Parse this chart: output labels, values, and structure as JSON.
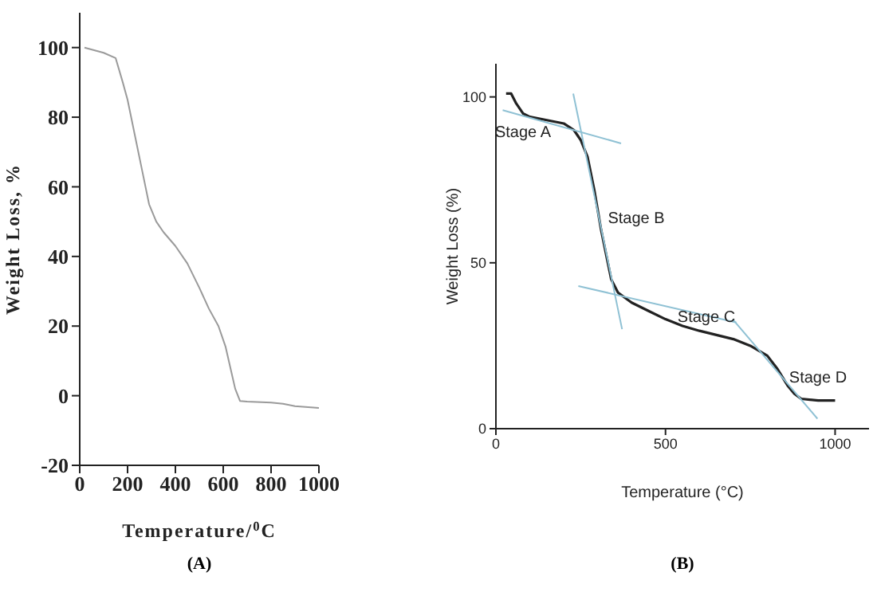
{
  "chart_data": [
    {
      "type": "line",
      "xlabel": "Temperature/$^{0}$C",
      "ylabel": "Weight Loss, %",
      "xlim": [
        0,
        1000
      ],
      "ylim": [
        -20,
        110
      ],
      "xticks": [
        0,
        200,
        400,
        600,
        800,
        1000
      ],
      "yticks": [
        -20,
        0,
        20,
        40,
        60,
        80,
        100
      ],
      "marker": "none",
      "annotations": [
        "(A)"
      ],
      "series": [
        {
          "color": "#9a9a9a",
          "x": [
            20,
            100,
            150,
            180,
            200,
            230,
            260,
            290,
            320,
            350,
            400,
            450,
            500,
            540,
            580,
            610,
            630,
            650,
            670,
            700,
            800,
            850,
            900,
            1000
          ],
          "values": [
            100,
            98.5,
            97,
            90,
            85,
            75,
            65,
            55,
            50,
            47,
            43,
            38,
            31,
            25,
            20,
            14,
            8,
            2,
            -1.5,
            -1.7,
            -2,
            -2.3,
            -3,
            -3.5
          ]
        }
      ]
    },
    {
      "type": "line",
      "xlabel": "Temperature (°C)",
      "ylabel": "Weight Loss (%)",
      "xlim": [
        0,
        1100
      ],
      "ylim": [
        0,
        110
      ],
      "xticks": [
        0,
        500,
        1000
      ],
      "yticks": [
        0,
        50,
        100
      ],
      "marker": "none",
      "annotations": [
        "Stage A",
        "Stage B",
        "Stage C",
        "Stage D",
        "(B)"
      ],
      "series": [
        {
          "color": "#222222",
          "x": [
            30,
            45,
            60,
            80,
            100,
            150,
            200,
            230,
            250,
            270,
            290,
            310,
            330,
            340,
            360,
            400,
            450,
            500,
            550,
            600,
            700,
            750,
            800,
            830,
            860,
            880,
            900,
            950,
            1000
          ],
          "values": [
            101,
            101,
            98,
            95,
            94,
            93,
            92,
            90,
            87,
            82,
            72,
            60,
            50,
            45,
            41,
            38,
            35.5,
            33,
            31,
            29.5,
            27,
            25,
            22,
            18,
            13,
            10.5,
            9,
            8.5,
            8.5
          ]
        },
        {
          "color": "#8fc1d4",
          "x": [
            20,
            369
          ],
          "values": [
            96,
            86
          ]
        },
        {
          "color": "#8fc1d4",
          "x": [
            228,
            372
          ],
          "values": [
            101,
            30
          ]
        },
        {
          "color": "#8fc1d4",
          "x": [
            243,
            709
          ],
          "values": [
            43,
            32
          ]
        },
        {
          "color": "#8fc1d4",
          "x": [
            698,
            948
          ],
          "values": [
            33,
            3
          ]
        }
      ]
    }
  ]
}
